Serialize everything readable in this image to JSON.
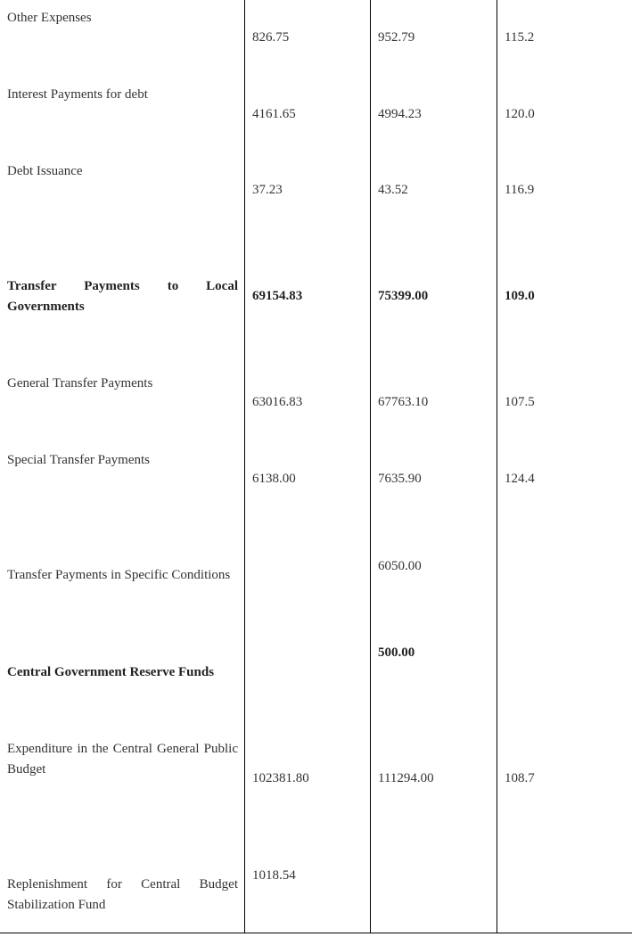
{
  "rows": [
    {
      "label": "Other Expenses",
      "col1": "826.75",
      "col2": "952.79",
      "col3": "115.2"
    },
    {
      "label": "Interest Payments for debt",
      "col1": "4161.65",
      "col2": "4994.23",
      "col3": "120.0"
    },
    {
      "label": "Debt Issuance",
      "col1": "37.23",
      "col2": "43.52",
      "col3": "116.9"
    },
    {
      "label": "Transfer Payments to Local Governments",
      "col1": "69154.83",
      "col2": "75399.00",
      "col3": "109.0"
    },
    {
      "label": "General Transfer Payments",
      "col1": "63016.83",
      "col2": "67763.10",
      "col3": "107.5"
    },
    {
      "label": "Special Transfer Payments",
      "col1": "6138.00",
      "col2": "7635.90",
      "col3": "124.4"
    },
    {
      "label": "Transfer Payments in Specific Conditions",
      "col2": "6050.00"
    },
    {
      "label": "Central Government Reserve Funds",
      "col2": "500.00"
    },
    {
      "label": "Expenditure in the Central General Public Budget",
      "col1": "102381.80",
      "col2": "111294.00",
      "col3": "108.7"
    },
    {
      "label": "Replenishment for Central Budget Stabilization Fund",
      "col1": "1018.54"
    }
  ]
}
